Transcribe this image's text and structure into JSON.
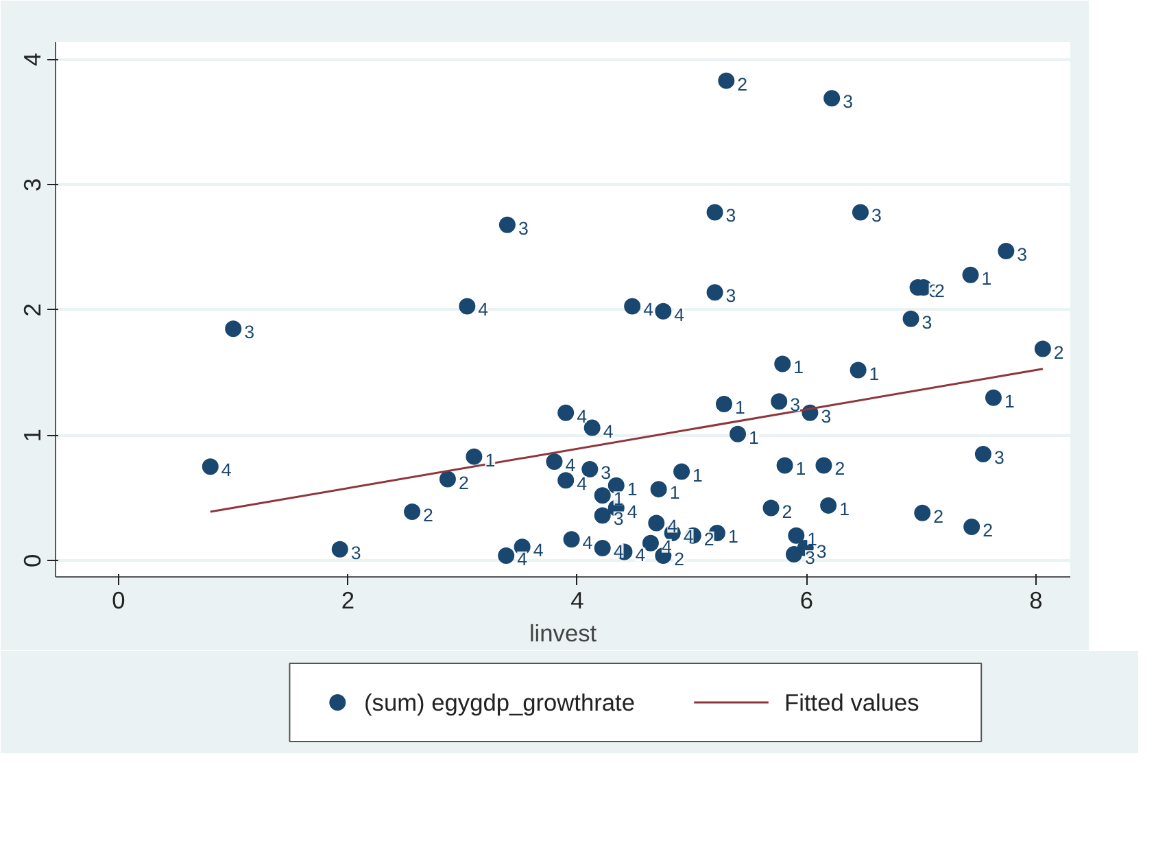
{
  "chart_data": {
    "type": "scatter",
    "xlabel": "linvest",
    "xlim": [
      -0.55,
      8.3
    ],
    "ylim": [
      -0.13,
      4.14
    ],
    "xticks": [
      0,
      2,
      4,
      6,
      8
    ],
    "yticks": [
      0,
      1,
      2,
      3,
      4
    ],
    "grid": "y",
    "legend": "bottom",
    "series": [
      {
        "name": "(sum) egygdp_growthrate",
        "color": "#1a476f",
        "marker": "circle",
        "x": [
          3.39,
          3.04,
          5.3,
          6.22,
          5.2,
          6.47,
          7.74,
          7.43,
          6.97,
          7.02,
          5.2,
          4.48,
          4.75,
          6.91,
          1.0,
          0.8,
          3.1,
          2.87,
          2.56,
          1.93,
          3.38,
          3.52,
          3.9,
          3.8,
          3.9,
          3.95,
          4.13,
          4.11,
          4.34,
          4.22,
          4.34,
          4.22,
          4.91,
          4.71,
          4.22,
          4.41,
          4.69,
          4.83,
          4.64,
          4.75,
          5.01,
          5.22,
          5.28,
          5.4,
          5.76,
          6.03,
          5.79,
          6.45,
          8.06,
          7.63,
          7.54,
          5.81,
          6.15,
          5.69,
          6.19,
          7.01,
          7.44,
          5.91,
          5.99,
          5.89
        ],
        "values": [
          2.68,
          2.03,
          3.83,
          3.69,
          2.78,
          2.78,
          2.47,
          2.28,
          2.18,
          2.18,
          2.14,
          2.03,
          1.99,
          1.93,
          1.85,
          0.75,
          0.83,
          0.65,
          0.39,
          0.09,
          0.04,
          0.11,
          1.18,
          0.79,
          0.64,
          0.17,
          1.06,
          0.73,
          0.6,
          0.52,
          0.42,
          0.36,
          0.71,
          0.57,
          0.1,
          0.07,
          0.3,
          0.22,
          0.14,
          0.04,
          0.2,
          0.22,
          1.25,
          1.01,
          1.27,
          1.18,
          1.57,
          1.52,
          1.69,
          1.3,
          0.85,
          0.76,
          0.76,
          0.42,
          0.44,
          0.38,
          0.27,
          0.2,
          0.1,
          0.05
        ]
      },
      {
        "name": "Fitted values",
        "color": "#90353b",
        "type": "line",
        "x": [
          0.8,
          8.06
        ],
        "values": [
          0.39,
          1.53
        ]
      }
    ],
    "annotations": [
      {
        "text": "3",
        "x": 3.39,
        "y": 2.68
      },
      {
        "text": "4",
        "x": 3.04,
        "y": 2.03
      },
      {
        "text": "2",
        "x": 5.3,
        "y": 3.83
      },
      {
        "text": "3",
        "x": 6.22,
        "y": 3.69
      },
      {
        "text": "3",
        "x": 5.2,
        "y": 2.78
      },
      {
        "text": "3",
        "x": 6.47,
        "y": 2.78
      },
      {
        "text": "3",
        "x": 7.74,
        "y": 2.47
      },
      {
        "text": "1",
        "x": 7.43,
        "y": 2.28
      },
      {
        "text": "3",
        "x": 6.97,
        "y": 2.18
      },
      {
        "text": "2",
        "x": 7.02,
        "y": 2.18
      },
      {
        "text": "3",
        "x": 5.2,
        "y": 2.14
      },
      {
        "text": "4",
        "x": 4.48,
        "y": 2.03
      },
      {
        "text": "4",
        "x": 4.75,
        "y": 1.99
      },
      {
        "text": "3",
        "x": 6.91,
        "y": 1.93
      },
      {
        "text": "3",
        "x": 1.0,
        "y": 1.85
      },
      {
        "text": "4",
        "x": 0.8,
        "y": 0.75
      },
      {
        "text": "1",
        "x": 3.1,
        "y": 0.83
      },
      {
        "text": "2",
        "x": 2.87,
        "y": 0.65
      },
      {
        "text": "2",
        "x": 2.56,
        "y": 0.39
      },
      {
        "text": "3",
        "x": 1.93,
        "y": 0.09
      },
      {
        "text": "4",
        "x": 3.38,
        "y": 0.04
      },
      {
        "text": "4",
        "x": 3.52,
        "y": 0.11
      },
      {
        "text": "4",
        "x": 3.9,
        "y": 1.18
      },
      {
        "text": "4",
        "x": 3.8,
        "y": 0.79
      },
      {
        "text": "4",
        "x": 3.9,
        "y": 0.64
      },
      {
        "text": "4",
        "x": 3.95,
        "y": 0.17
      },
      {
        "text": "4",
        "x": 4.13,
        "y": 1.06
      },
      {
        "text": "3",
        "x": 4.11,
        "y": 0.73
      },
      {
        "text": "1",
        "x": 4.34,
        "y": 0.6
      },
      {
        "text": "1",
        "x": 4.22,
        "y": 0.52
      },
      {
        "text": "4",
        "x": 4.34,
        "y": 0.42
      },
      {
        "text": "3",
        "x": 4.22,
        "y": 0.36
      },
      {
        "text": "1",
        "x": 4.91,
        "y": 0.71
      },
      {
        "text": "1",
        "x": 4.71,
        "y": 0.57
      },
      {
        "text": "4",
        "x": 4.22,
        "y": 0.1
      },
      {
        "text": "4",
        "x": 4.41,
        "y": 0.07
      },
      {
        "text": "4",
        "x": 4.69,
        "y": 0.3
      },
      {
        "text": "4",
        "x": 4.83,
        "y": 0.22
      },
      {
        "text": "4",
        "x": 4.64,
        "y": 0.14
      },
      {
        "text": "2",
        "x": 4.75,
        "y": 0.04
      },
      {
        "text": "2",
        "x": 5.01,
        "y": 0.2
      },
      {
        "text": "1",
        "x": 5.22,
        "y": 0.22
      },
      {
        "text": "1",
        "x": 5.28,
        "y": 1.25
      },
      {
        "text": "1",
        "x": 5.4,
        "y": 1.01
      },
      {
        "text": "3",
        "x": 5.76,
        "y": 1.27
      },
      {
        "text": "3",
        "x": 6.03,
        "y": 1.18
      },
      {
        "text": "1",
        "x": 5.79,
        "y": 1.57
      },
      {
        "text": "1",
        "x": 6.45,
        "y": 1.52
      },
      {
        "text": "2",
        "x": 8.06,
        "y": 1.69
      },
      {
        "text": "1",
        "x": 7.63,
        "y": 1.3
      },
      {
        "text": "3",
        "x": 7.54,
        "y": 0.85
      },
      {
        "text": "1",
        "x": 5.81,
        "y": 0.76
      },
      {
        "text": "2",
        "x": 6.15,
        "y": 0.76
      },
      {
        "text": "2",
        "x": 5.69,
        "y": 0.42
      },
      {
        "text": "1",
        "x": 6.19,
        "y": 0.44
      },
      {
        "text": "2",
        "x": 7.01,
        "y": 0.38
      },
      {
        "text": "2",
        "x": 7.44,
        "y": 0.27
      },
      {
        "text": "1",
        "x": 5.91,
        "y": 0.2
      },
      {
        "text": "3",
        "x": 5.99,
        "y": 0.1
      },
      {
        "text": "3",
        "x": 5.89,
        "y": 0.05
      }
    ]
  }
}
